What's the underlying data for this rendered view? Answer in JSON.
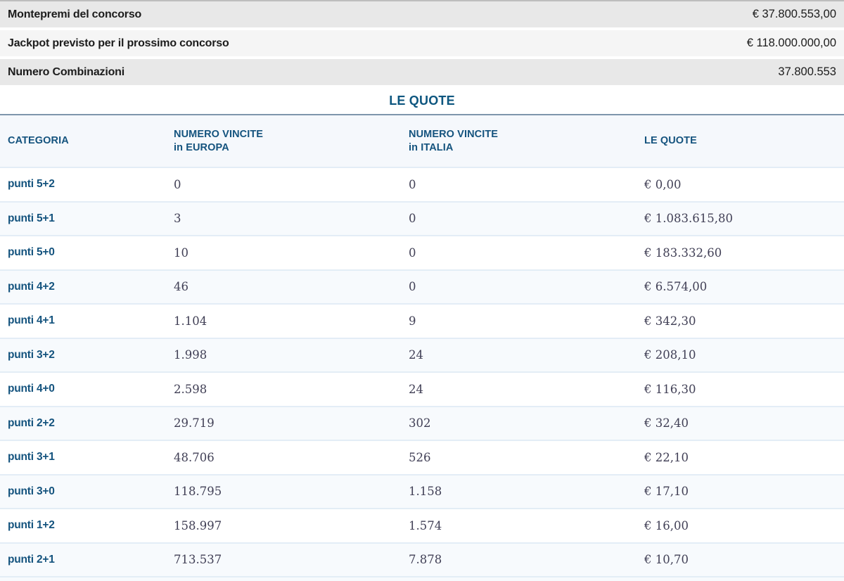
{
  "summary": {
    "rows": [
      {
        "label": "Montepremi del concorso",
        "value": "€ 37.800.553,00"
      },
      {
        "label": "Jackpot previsto per il prossimo concorso",
        "value": "€ 118.000.000,00"
      },
      {
        "label": "Numero Combinazioni",
        "value": "37.800.553"
      }
    ]
  },
  "quotes": {
    "title": "LE QUOTE",
    "table": {
      "headers": [
        {
          "line1": "CATEGORIA",
          "line2": ""
        },
        {
          "line1": "NUMERO VINCITE",
          "line2": "in EUROPA"
        },
        {
          "line1": "NUMERO VINCITE",
          "line2": "in ITALIA"
        },
        {
          "line1": "LE QUOTE",
          "line2": ""
        }
      ],
      "rows": [
        {
          "category": "punti 5+2",
          "wins_europe": "0",
          "wins_italy": "0",
          "quote": "€ 0,00"
        },
        {
          "category": "punti 5+1",
          "wins_europe": "3",
          "wins_italy": "0",
          "quote": "€ 1.083.615,80"
        },
        {
          "category": "punti 5+0",
          "wins_europe": "10",
          "wins_italy": "0",
          "quote": "€ 183.332,60"
        },
        {
          "category": "punti 4+2",
          "wins_europe": "46",
          "wins_italy": "0",
          "quote": "€ 6.574,00"
        },
        {
          "category": "punti 4+1",
          "wins_europe": "1.104",
          "wins_italy": "9",
          "quote": "€ 342,30"
        },
        {
          "category": "punti 3+2",
          "wins_europe": "1.998",
          "wins_italy": "24",
          "quote": "€ 208,10"
        },
        {
          "category": "punti 4+0",
          "wins_europe": "2.598",
          "wins_italy": "24",
          "quote": "€ 116,30"
        },
        {
          "category": "punti 2+2",
          "wins_europe": "29.719",
          "wins_italy": "302",
          "quote": "€ 32,40"
        },
        {
          "category": "punti 3+1",
          "wins_europe": "48.706",
          "wins_italy": "526",
          "quote": "€ 22,10"
        },
        {
          "category": "punti 3+0",
          "wins_europe": "118.795",
          "wins_italy": "1.158",
          "quote": "€ 17,10"
        },
        {
          "category": "punti 1+2",
          "wins_europe": "158.997",
          "wins_italy": "1.574",
          "quote": "€ 16,00"
        },
        {
          "category": "punti 2+1",
          "wins_europe": "713.537",
          "wins_italy": "7.878",
          "quote": "€ 10,70"
        }
      ]
    }
  },
  "colors": {
    "accent_blue": "#14537e",
    "title_blue": "#0d567f",
    "steel_line": "#7e95ac",
    "header_bg": "#f5f8fc",
    "row_tint": "#f7fafd",
    "row_border": "#e3edf6",
    "summary_dark": "#e8e8e8",
    "summary_light": "#f5f5f5",
    "number_text": "#403f55"
  }
}
